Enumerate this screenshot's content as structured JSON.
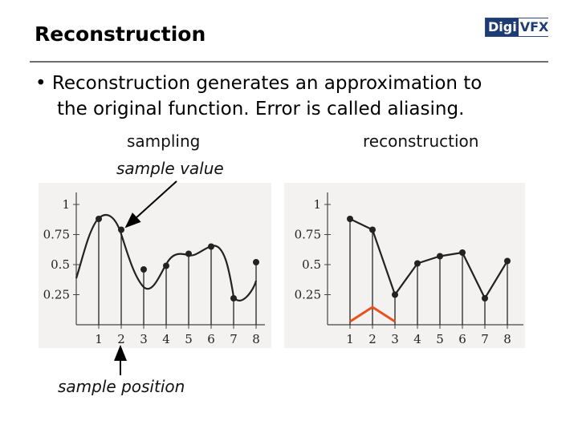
{
  "slide": {
    "title": "Reconstruction",
    "logo": {
      "part1": "Digi",
      "part2": "VFX"
    },
    "bullet": {
      "marker": "•",
      "line1": "Reconstruction generates an approximation to",
      "line2": "the original function. Error is called aliasing."
    },
    "labels": {
      "sampling": "sampling",
      "sample_value": "sample value",
      "reconstruction": "reconstruction",
      "sample_position": "sample position"
    }
  },
  "chart_data": [
    {
      "type": "scatter",
      "title": "sampling",
      "x": [
        1,
        2,
        3,
        4,
        5,
        6,
        7,
        8
      ],
      "samples": [
        0.88,
        0.79,
        0.46,
        0.49,
        0.59,
        0.65,
        0.22,
        0.52
      ],
      "x_ticks": [
        "1",
        "2",
        "3",
        "4",
        "5",
        "6",
        "7",
        "8"
      ],
      "y_ticks": [
        "0.25",
        "0.5",
        "0.75",
        "1"
      ],
      "xlim": [
        0,
        8.2
      ],
      "ylim": [
        0,
        1.1
      ]
    },
    {
      "type": "line",
      "title": "reconstruction",
      "x": [
        1,
        2,
        3,
        4,
        5,
        6,
        7,
        8
      ],
      "samples": [
        0.88,
        0.79,
        0.25,
        0.51,
        0.57,
        0.6,
        0.22,
        0.53
      ],
      "x_ticks": [
        "1",
        "2",
        "3",
        "4",
        "5",
        "6",
        "7",
        "8"
      ],
      "y_ticks": [
        "0.25",
        "0.5",
        "0.75",
        "1"
      ],
      "xlim": [
        0,
        8.2
      ],
      "ylim": [
        0,
        1.1
      ]
    }
  ]
}
